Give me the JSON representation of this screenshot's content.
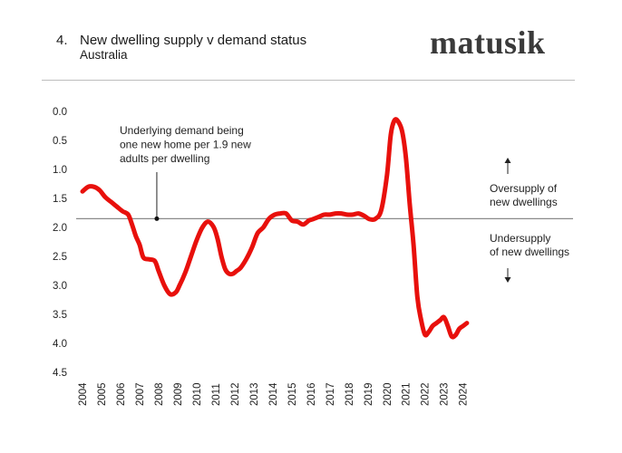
{
  "header": {
    "number": "4.",
    "title": "New dwelling supply v demand status",
    "subtitle": "Australia",
    "brand": "matusik"
  },
  "annotations": {
    "demand_note": [
      "Underlying demand being",
      "one new home per 1.9 new",
      "adults per dwelling"
    ],
    "oversupply": [
      "Oversupply of",
      "new dwellings"
    ],
    "undersupply": [
      "Undersupply",
      "of new dwellings"
    ]
  },
  "colors": {
    "line": "#e8100c",
    "reference": "#8a8a8a",
    "text": "#222222"
  },
  "chart_data": {
    "type": "line",
    "title": "New dwelling supply v demand status",
    "subtitle": "Australia",
    "xlabel": "",
    "ylabel": "",
    "y_inverted": true,
    "ylim": [
      0.0,
      4.5
    ],
    "xlim": [
      2004.0,
      2024.3
    ],
    "yticks": [
      "0.0",
      "0.5",
      "1.0",
      "1.5",
      "2.0",
      "2.5",
      "3.0",
      "3.5",
      "4.0",
      "4.5"
    ],
    "xticks": [
      "2004",
      "2005",
      "2006",
      "2007",
      "2008",
      "2009",
      "2010",
      "2011",
      "2012",
      "2013",
      "2014",
      "2015",
      "2016",
      "2017",
      "2018",
      "2019",
      "2020",
      "2021",
      "2022",
      "2023",
      "2024"
    ],
    "reference_line": {
      "y": 1.85,
      "label": "Underlying demand being one new home per 1.9 new adults per dwelling",
      "marker_x": 2008.0
    },
    "grid": false,
    "series": [
      {
        "x": [
          2004.0,
          2004.3,
          2004.6,
          2004.9,
          2005.2,
          2005.5,
          2005.8,
          2006.1,
          2006.4,
          2006.6,
          2006.8,
          2007.0,
          2007.2,
          2007.5,
          2007.8,
          2008.0,
          2008.3,
          2008.6,
          2008.9,
          2009.1,
          2009.4,
          2009.7,
          2010.0,
          2010.3,
          2010.6,
          2010.9,
          2011.1,
          2011.3,
          2011.5,
          2011.7,
          2011.9,
          2012.1,
          2012.3,
          2012.6,
          2012.9,
          2013.2,
          2013.5,
          2013.8,
          2014.1,
          2014.4,
          2014.7,
          2015.0,
          2015.3,
          2015.6,
          2015.9,
          2016.1,
          2016.4,
          2016.7,
          2017.0,
          2017.3,
          2017.6,
          2017.9,
          2018.2,
          2018.5,
          2018.8,
          2019.1,
          2019.4,
          2019.7,
          2020.0,
          2020.2,
          2020.4,
          2020.6,
          2020.8,
          2021.0,
          2021.2,
          2021.4,
          2021.6,
          2021.8,
          2022.0,
          2022.2,
          2022.4,
          2022.6,
          2022.8,
          2023.0,
          2023.2,
          2023.4,
          2023.6,
          2023.8,
          2024.0,
          2024.2
        ],
        "y": [
          1.38,
          1.3,
          1.3,
          1.36,
          1.48,
          1.56,
          1.64,
          1.72,
          1.78,
          1.95,
          2.15,
          2.3,
          2.52,
          2.55,
          2.58,
          2.75,
          3.0,
          3.15,
          3.12,
          3.0,
          2.78,
          2.5,
          2.22,
          2.0,
          1.9,
          2.0,
          2.2,
          2.5,
          2.72,
          2.8,
          2.8,
          2.75,
          2.7,
          2.55,
          2.35,
          2.1,
          2.0,
          1.85,
          1.78,
          1.76,
          1.76,
          1.88,
          1.9,
          1.95,
          1.88,
          1.86,
          1.82,
          1.78,
          1.78,
          1.76,
          1.76,
          1.78,
          1.78,
          1.76,
          1.8,
          1.86,
          1.85,
          1.7,
          1.1,
          0.4,
          0.15,
          0.18,
          0.35,
          0.8,
          1.6,
          2.3,
          3.2,
          3.6,
          3.85,
          3.8,
          3.7,
          3.65,
          3.6,
          3.55,
          3.7,
          3.88,
          3.86,
          3.75,
          3.7,
          3.65
        ]
      }
    ]
  }
}
